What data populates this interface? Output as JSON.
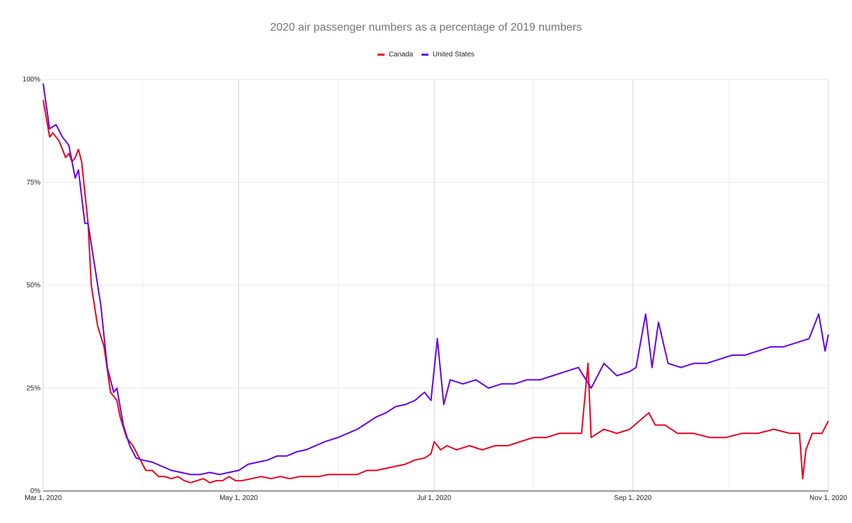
{
  "chart_data": {
    "type": "line",
    "title": "2020 air passenger numbers as a percentage of 2019 numbers",
    "xlabel": "",
    "ylabel": "",
    "x_range": [
      "2020-03-01",
      "2020-11-01"
    ],
    "ylim": [
      0,
      100
    ],
    "y_ticks": [
      "0%",
      "25%",
      "50%",
      "75%",
      "100%"
    ],
    "y_tick_values": [
      0,
      25,
      50,
      75,
      100
    ],
    "x_ticks": [
      "Mar 1, 2020",
      "May 1, 2020",
      "Jul 1, 2020",
      "Sep 1, 2020",
      "Nov 1, 2020"
    ],
    "x_tick_dates": [
      "2020-03-01",
      "2020-05-01",
      "2020-07-01",
      "2020-09-01",
      "2020-11-01"
    ],
    "grid": true,
    "legend_position": "top-center",
    "series": [
      {
        "name": "Canada",
        "color": "#e8001c",
        "points": [
          [
            "2020-03-01",
            95
          ],
          [
            "2020-03-03",
            86
          ],
          [
            "2020-03-04",
            87
          ],
          [
            "2020-03-06",
            85
          ],
          [
            "2020-03-08",
            81
          ],
          [
            "2020-03-09",
            82
          ],
          [
            "2020-03-10",
            80
          ],
          [
            "2020-03-11",
            81
          ],
          [
            "2020-03-12",
            83
          ],
          [
            "2020-03-13",
            80
          ],
          [
            "2020-03-15",
            65
          ],
          [
            "2020-03-16",
            50
          ],
          [
            "2020-03-18",
            40
          ],
          [
            "2020-03-20",
            35
          ],
          [
            "2020-03-22",
            24
          ],
          [
            "2020-03-24",
            22
          ],
          [
            "2020-03-25",
            18
          ],
          [
            "2020-03-27",
            13
          ],
          [
            "2020-03-29",
            11
          ],
          [
            "2020-03-31",
            8
          ],
          [
            "2020-04-02",
            5
          ],
          [
            "2020-04-04",
            5
          ],
          [
            "2020-04-06",
            3.5
          ],
          [
            "2020-04-08",
            3.5
          ],
          [
            "2020-04-10",
            3
          ],
          [
            "2020-04-12",
            3.5
          ],
          [
            "2020-04-14",
            2.5
          ],
          [
            "2020-04-16",
            2
          ],
          [
            "2020-04-18",
            2.5
          ],
          [
            "2020-04-20",
            3
          ],
          [
            "2020-04-22",
            2
          ],
          [
            "2020-04-24",
            2.5
          ],
          [
            "2020-04-26",
            2.5
          ],
          [
            "2020-04-28",
            3.5
          ],
          [
            "2020-04-30",
            2.5
          ],
          [
            "2020-05-02",
            2.5
          ],
          [
            "2020-05-05",
            3
          ],
          [
            "2020-05-08",
            3.5
          ],
          [
            "2020-05-11",
            3
          ],
          [
            "2020-05-14",
            3.5
          ],
          [
            "2020-05-17",
            3
          ],
          [
            "2020-05-20",
            3.5
          ],
          [
            "2020-05-23",
            3.5
          ],
          [
            "2020-05-26",
            3.5
          ],
          [
            "2020-05-29",
            4
          ],
          [
            "2020-06-01",
            4
          ],
          [
            "2020-06-04",
            4
          ],
          [
            "2020-06-07",
            4
          ],
          [
            "2020-06-10",
            5
          ],
          [
            "2020-06-13",
            5
          ],
          [
            "2020-06-16",
            5.5
          ],
          [
            "2020-06-19",
            6
          ],
          [
            "2020-06-22",
            6.5
          ],
          [
            "2020-06-25",
            7.5
          ],
          [
            "2020-06-28",
            8
          ],
          [
            "2020-06-30",
            9
          ],
          [
            "2020-07-01",
            12
          ],
          [
            "2020-07-03",
            10
          ],
          [
            "2020-07-05",
            11
          ],
          [
            "2020-07-08",
            10
          ],
          [
            "2020-07-12",
            11
          ],
          [
            "2020-07-16",
            10
          ],
          [
            "2020-07-20",
            11
          ],
          [
            "2020-07-24",
            11
          ],
          [
            "2020-07-28",
            12
          ],
          [
            "2020-08-01",
            13
          ],
          [
            "2020-08-05",
            13
          ],
          [
            "2020-08-09",
            14
          ],
          [
            "2020-08-13",
            14
          ],
          [
            "2020-08-16",
            14
          ],
          [
            "2020-08-18",
            31
          ],
          [
            "2020-08-19",
            13
          ],
          [
            "2020-08-23",
            15
          ],
          [
            "2020-08-27",
            14
          ],
          [
            "2020-08-31",
            15
          ],
          [
            "2020-09-03",
            17
          ],
          [
            "2020-09-06",
            19
          ],
          [
            "2020-09-08",
            16
          ],
          [
            "2020-09-11",
            16
          ],
          [
            "2020-09-15",
            14
          ],
          [
            "2020-09-20",
            14
          ],
          [
            "2020-09-25",
            13
          ],
          [
            "2020-09-30",
            13
          ],
          [
            "2020-10-05",
            14
          ],
          [
            "2020-10-10",
            14
          ],
          [
            "2020-10-15",
            15
          ],
          [
            "2020-10-20",
            14
          ],
          [
            "2020-10-23",
            14
          ],
          [
            "2020-10-24",
            3
          ],
          [
            "2020-10-25",
            10
          ],
          [
            "2020-10-27",
            14
          ],
          [
            "2020-10-30",
            14
          ],
          [
            "2020-11-01",
            17
          ]
        ]
      },
      {
        "name": "United States",
        "color": "#6200ea",
        "points": [
          [
            "2020-03-01",
            99
          ],
          [
            "2020-03-03",
            88
          ],
          [
            "2020-03-05",
            89
          ],
          [
            "2020-03-07",
            86
          ],
          [
            "2020-03-09",
            84
          ],
          [
            "2020-03-11",
            76
          ],
          [
            "2020-03-12",
            78
          ],
          [
            "2020-03-14",
            65
          ],
          [
            "2020-03-15",
            65
          ],
          [
            "2020-03-17",
            55
          ],
          [
            "2020-03-19",
            45
          ],
          [
            "2020-03-21",
            30
          ],
          [
            "2020-03-23",
            24
          ],
          [
            "2020-03-24",
            25
          ],
          [
            "2020-03-26",
            16
          ],
          [
            "2020-03-28",
            11
          ],
          [
            "2020-03-30",
            8
          ],
          [
            "2020-04-01",
            7.5
          ],
          [
            "2020-04-04",
            7
          ],
          [
            "2020-04-07",
            6
          ],
          [
            "2020-04-10",
            5
          ],
          [
            "2020-04-13",
            4.5
          ],
          [
            "2020-04-16",
            4
          ],
          [
            "2020-04-19",
            4
          ],
          [
            "2020-04-22",
            4.5
          ],
          [
            "2020-04-25",
            4
          ],
          [
            "2020-04-28",
            4.5
          ],
          [
            "2020-05-01",
            5
          ],
          [
            "2020-05-04",
            6.5
          ],
          [
            "2020-05-07",
            7
          ],
          [
            "2020-05-10",
            7.5
          ],
          [
            "2020-05-13",
            8.5
          ],
          [
            "2020-05-16",
            8.5
          ],
          [
            "2020-05-19",
            9.5
          ],
          [
            "2020-05-22",
            10
          ],
          [
            "2020-05-25",
            11
          ],
          [
            "2020-05-28",
            12
          ],
          [
            "2020-06-01",
            13
          ],
          [
            "2020-06-04",
            14
          ],
          [
            "2020-06-07",
            15
          ],
          [
            "2020-06-10",
            16.5
          ],
          [
            "2020-06-13",
            18
          ],
          [
            "2020-06-16",
            19
          ],
          [
            "2020-06-19",
            20.5
          ],
          [
            "2020-06-22",
            21
          ],
          [
            "2020-06-25",
            22
          ],
          [
            "2020-06-28",
            24
          ],
          [
            "2020-06-30",
            22
          ],
          [
            "2020-07-02",
            37
          ],
          [
            "2020-07-04",
            21
          ],
          [
            "2020-07-06",
            27
          ],
          [
            "2020-07-10",
            26
          ],
          [
            "2020-07-14",
            27
          ],
          [
            "2020-07-18",
            25
          ],
          [
            "2020-07-22",
            26
          ],
          [
            "2020-07-26",
            26
          ],
          [
            "2020-07-30",
            27
          ],
          [
            "2020-08-03",
            27
          ],
          [
            "2020-08-07",
            28
          ],
          [
            "2020-08-11",
            29
          ],
          [
            "2020-08-15",
            30
          ],
          [
            "2020-08-19",
            25
          ],
          [
            "2020-08-23",
            31
          ],
          [
            "2020-08-27",
            28
          ],
          [
            "2020-08-31",
            29
          ],
          [
            "2020-09-02",
            30
          ],
          [
            "2020-09-05",
            43
          ],
          [
            "2020-09-07",
            30
          ],
          [
            "2020-09-09",
            41
          ],
          [
            "2020-09-12",
            31
          ],
          [
            "2020-09-16",
            30
          ],
          [
            "2020-09-20",
            31
          ],
          [
            "2020-09-24",
            31
          ],
          [
            "2020-09-28",
            32
          ],
          [
            "2020-10-02",
            33
          ],
          [
            "2020-10-06",
            33
          ],
          [
            "2020-10-10",
            34
          ],
          [
            "2020-10-14",
            35
          ],
          [
            "2020-10-18",
            35
          ],
          [
            "2020-10-22",
            36
          ],
          [
            "2020-10-26",
            37
          ],
          [
            "2020-10-29",
            43
          ],
          [
            "2020-10-31",
            34
          ],
          [
            "2020-11-01",
            38
          ]
        ]
      }
    ]
  }
}
